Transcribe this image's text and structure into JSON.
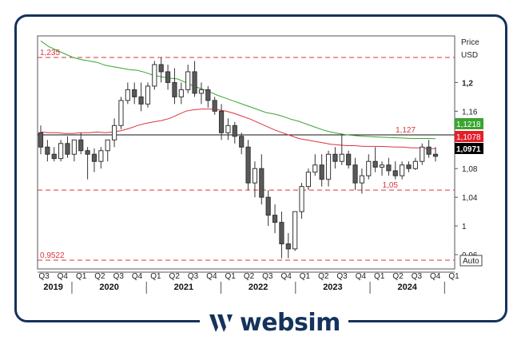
{
  "brand": {
    "name": "websim",
    "color": "#14335c"
  },
  "chart_data": {
    "type": "candlestick",
    "price_label": "Price",
    "currency_label": "USD",
    "auto_label": "Auto",
    "ylim": [
      0.94,
      1.265
    ],
    "y_ticks": [
      {
        "value": 1.2,
        "label": "1,2",
        "bold": true
      },
      {
        "value": 1.16,
        "label": "1,16"
      },
      {
        "value": 1.08,
        "label": "1,08"
      },
      {
        "value": 1.04,
        "label": "1,04"
      },
      {
        "value": 1.0,
        "label": "1"
      },
      {
        "value": 0.96,
        "label": "0,96"
      }
    ],
    "quarter_labels": [
      "Q3",
      "Q4",
      "Q1",
      "Q2",
      "Q3",
      "Q4",
      "Q1",
      "Q2",
      "Q3",
      "Q4",
      "Q1",
      "Q2",
      "Q3",
      "Q4",
      "Q1",
      "Q2",
      "Q3",
      "Q4",
      "Q1",
      "Q2",
      "Q3",
      "Q4",
      "Q1"
    ],
    "years": [
      "2019",
      "2020",
      "2021",
      "2022",
      "2023",
      "2024"
    ],
    "horizontal_lines": [
      {
        "value": 1.235,
        "label": "1,235",
        "style": "dashed",
        "color": "#d9363e"
      },
      {
        "value": 1.05,
        "label": "1,05",
        "style": "dashed",
        "color": "#d9363e"
      },
      {
        "value": 0.9522,
        "label": "0,9522",
        "style": "dashed",
        "color": "#d9363e"
      },
      {
        "value": 1.127,
        "label": "1,127",
        "style": "solid",
        "color": "#111111"
      }
    ],
    "price_badges": [
      {
        "value": 1.1218,
        "label": "1,1218",
        "color": "#3aa431"
      },
      {
        "value": 1.1078,
        "label": "1,1078",
        "color": "#e3202a"
      },
      {
        "value": 1.0971,
        "label": "1,0971",
        "color": "#000000"
      }
    ],
    "series": [
      {
        "name": "MA green",
        "color": "#3aa431",
        "values": [
          1.258,
          1.25,
          1.245,
          1.24,
          1.235,
          1.232,
          1.23,
          1.228,
          1.224,
          1.222,
          1.22,
          1.218,
          1.217,
          1.214,
          1.21,
          1.208,
          1.206,
          1.205,
          1.2,
          1.195,
          1.191,
          1.187,
          1.182,
          1.178,
          1.174,
          1.17,
          1.166,
          1.162,
          1.158,
          1.156,
          1.153,
          1.149,
          1.146,
          1.142,
          1.138,
          1.134,
          1.131,
          1.129,
          1.127,
          1.126,
          1.125,
          1.1245,
          1.124,
          1.1235,
          1.123,
          1.1225,
          1.122,
          1.122,
          1.122,
          1.1218
        ]
      },
      {
        "name": "MA red",
        "color": "#d9363e",
        "values": [
          1.131,
          1.13,
          1.13,
          1.129,
          1.129,
          1.13,
          1.13,
          1.131,
          1.13,
          1.131,
          1.133,
          1.136,
          1.14,
          1.143,
          1.145,
          1.147,
          1.15,
          1.155,
          1.16,
          1.162,
          1.163,
          1.163,
          1.162,
          1.16,
          1.157,
          1.153,
          1.149,
          1.144,
          1.139,
          1.134,
          1.13,
          1.126,
          1.122,
          1.12,
          1.118,
          1.116,
          1.114,
          1.113,
          1.112,
          1.112,
          1.111,
          1.111,
          1.111,
          1.1105,
          1.11,
          1.11,
          1.109,
          1.109,
          1.108,
          1.1078
        ]
      }
    ],
    "candles": [
      {
        "o": 1.13,
        "h": 1.14,
        "l": 1.1,
        "c": 1.11
      },
      {
        "o": 1.11,
        "h": 1.12,
        "l": 1.09,
        "c": 1.1
      },
      {
        "o": 1.1,
        "h": 1.11,
        "l": 1.09,
        "c": 1.094
      },
      {
        "o": 1.094,
        "h": 1.12,
        "l": 1.09,
        "c": 1.115
      },
      {
        "o": 1.115,
        "h": 1.125,
        "l": 1.095,
        "c": 1.1
      },
      {
        "o": 1.1,
        "h": 1.12,
        "l": 1.09,
        "c": 1.12
      },
      {
        "o": 1.12,
        "h": 1.13,
        "l": 1.1,
        "c": 1.105
      },
      {
        "o": 1.105,
        "h": 1.11,
        "l": 1.065,
        "c": 1.1
      },
      {
        "o": 1.1,
        "h": 1.108,
        "l": 1.075,
        "c": 1.09
      },
      {
        "o": 1.09,
        "h": 1.11,
        "l": 1.08,
        "c": 1.105
      },
      {
        "o": 1.105,
        "h": 1.12,
        "l": 1.09,
        "c": 1.12
      },
      {
        "o": 1.12,
        "h": 1.15,
        "l": 1.11,
        "c": 1.14
      },
      {
        "o": 1.14,
        "h": 1.18,
        "l": 1.135,
        "c": 1.175
      },
      {
        "o": 1.175,
        "h": 1.2,
        "l": 1.17,
        "c": 1.19
      },
      {
        "o": 1.19,
        "h": 1.2,
        "l": 1.17,
        "c": 1.18
      },
      {
        "o": 1.18,
        "h": 1.2,
        "l": 1.16,
        "c": 1.17
      },
      {
        "o": 1.17,
        "h": 1.2,
        "l": 1.165,
        "c": 1.195
      },
      {
        "o": 1.195,
        "h": 1.23,
        "l": 1.19,
        "c": 1.225
      },
      {
        "o": 1.225,
        "h": 1.235,
        "l": 1.2,
        "c": 1.215
      },
      {
        "o": 1.215,
        "h": 1.225,
        "l": 1.19,
        "c": 1.2
      },
      {
        "o": 1.2,
        "h": 1.22,
        "l": 1.17,
        "c": 1.18
      },
      {
        "o": 1.18,
        "h": 1.2,
        "l": 1.17,
        "c": 1.19
      },
      {
        "o": 1.19,
        "h": 1.225,
        "l": 1.185,
        "c": 1.215
      },
      {
        "o": 1.215,
        "h": 1.23,
        "l": 1.18,
        "c": 1.185
      },
      {
        "o": 1.185,
        "h": 1.2,
        "l": 1.17,
        "c": 1.19
      },
      {
        "o": 1.19,
        "h": 1.195,
        "l": 1.165,
        "c": 1.175
      },
      {
        "o": 1.175,
        "h": 1.18,
        "l": 1.155,
        "c": 1.16
      },
      {
        "o": 1.16,
        "h": 1.17,
        "l": 1.12,
        "c": 1.13
      },
      {
        "o": 1.13,
        "h": 1.15,
        "l": 1.12,
        "c": 1.14
      },
      {
        "o": 1.14,
        "h": 1.145,
        "l": 1.115,
        "c": 1.125
      },
      {
        "o": 1.125,
        "h": 1.13,
        "l": 1.1,
        "c": 1.11
      },
      {
        "o": 1.11,
        "h": 1.12,
        "l": 1.05,
        "c": 1.06
      },
      {
        "o": 1.06,
        "h": 1.09,
        "l": 1.04,
        "c": 1.08
      },
      {
        "o": 1.08,
        "h": 1.1,
        "l": 1.03,
        "c": 1.04
      },
      {
        "o": 1.04,
        "h": 1.05,
        "l": 1.0,
        "c": 1.015
      },
      {
        "o": 1.015,
        "h": 1.03,
        "l": 0.99,
        "c": 1.005
      },
      {
        "o": 1.005,
        "h": 1.02,
        "l": 0.955,
        "c": 0.975
      },
      {
        "o": 0.975,
        "h": 0.99,
        "l": 0.955,
        "c": 0.968
      },
      {
        "o": 0.968,
        "h": 1.02,
        "l": 0.965,
        "c": 1.02
      },
      {
        "o": 1.02,
        "h": 1.06,
        "l": 1.01,
        "c": 1.055
      },
      {
        "o": 1.055,
        "h": 1.08,
        "l": 1.05,
        "c": 1.075
      },
      {
        "o": 1.075,
        "h": 1.1,
        "l": 1.07,
        "c": 1.085
      },
      {
        "o": 1.085,
        "h": 1.1,
        "l": 1.055,
        "c": 1.065
      },
      {
        "o": 1.065,
        "h": 1.105,
        "l": 1.055,
        "c": 1.1
      },
      {
        "o": 1.1,
        "h": 1.11,
        "l": 1.08,
        "c": 1.09
      },
      {
        "o": 1.09,
        "h": 1.127,
        "l": 1.085,
        "c": 1.1
      },
      {
        "o": 1.1,
        "h": 1.105,
        "l": 1.08,
        "c": 1.085
      },
      {
        "o": 1.085,
        "h": 1.095,
        "l": 1.05,
        "c": 1.06
      },
      {
        "o": 1.06,
        "h": 1.08,
        "l": 1.045,
        "c": 1.07
      },
      {
        "o": 1.07,
        "h": 1.1,
        "l": 1.065,
        "c": 1.09
      },
      {
        "o": 1.09,
        "h": 1.11,
        "l": 1.075,
        "c": 1.082
      },
      {
        "o": 1.082,
        "h": 1.09,
        "l": 1.07,
        "c": 1.085
      },
      {
        "o": 1.085,
        "h": 1.095,
        "l": 1.07,
        "c": 1.077
      },
      {
        "o": 1.077,
        "h": 1.09,
        "l": 1.065,
        "c": 1.07
      },
      {
        "o": 1.07,
        "h": 1.09,
        "l": 1.065,
        "c": 1.085
      },
      {
        "o": 1.085,
        "h": 1.09,
        "l": 1.075,
        "c": 1.08
      },
      {
        "o": 1.08,
        "h": 1.095,
        "l": 1.078,
        "c": 1.09
      },
      {
        "o": 1.09,
        "h": 1.115,
        "l": 1.085,
        "c": 1.11
      },
      {
        "o": 1.11,
        "h": 1.12,
        "l": 1.095,
        "c": 1.1
      },
      {
        "o": 1.1,
        "h": 1.11,
        "l": 1.09,
        "c": 1.0971
      }
    ]
  }
}
